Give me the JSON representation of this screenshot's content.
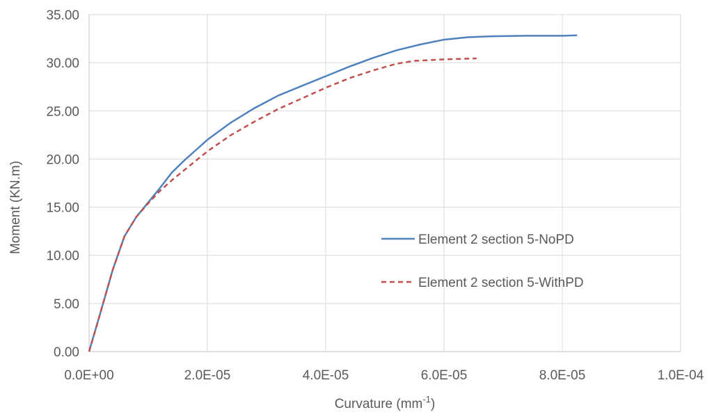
{
  "chart_data": {
    "type": "line",
    "xlabel": "Curvature (mm",
    "xlabel_sup": "-1",
    "xlabel_close": ")",
    "ylabel": "Moment (KN.m)",
    "xlim": [
      0,
      0.0001
    ],
    "ylim": [
      0,
      35
    ],
    "x_ticks": [
      0,
      2e-05,
      4e-05,
      6e-05,
      8e-05,
      0.0001
    ],
    "x_tick_labels": [
      "0.0E+00",
      "2.0E-05",
      "4.0E-05",
      "6.0E-05",
      "8.0E-05",
      "1.0E-04"
    ],
    "y_ticks": [
      0,
      5,
      10,
      15,
      20,
      25,
      30,
      35
    ],
    "y_tick_labels": [
      "0.00",
      "5.00",
      "10.00",
      "15.00",
      "20.00",
      "25.00",
      "30.00",
      "35.00"
    ],
    "grid": "vertical and horizontal major gridlines",
    "legend_position": "right-center",
    "series": [
      {
        "name": "Element 2 section 5-NoPD",
        "color": "#4f81bd",
        "style": "solid",
        "x": [
          0,
          2e-06,
          4e-06,
          6e-06,
          8e-06,
          1e-05,
          1.2e-05,
          1.4e-05,
          1.6e-05,
          1.8e-05,
          2e-05,
          2.4e-05,
          2.8e-05,
          3.2e-05,
          3.6e-05,
          4e-05,
          4.4e-05,
          4.8e-05,
          5.2e-05,
          5.6e-05,
          6e-05,
          6.4e-05,
          6.8e-05,
          7.4e-05,
          8e-05,
          8.25e-05
        ],
        "y": [
          0,
          4.2,
          8.5,
          12.0,
          14.0,
          15.5,
          17.0,
          18.6,
          19.8,
          20.9,
          22.0,
          23.8,
          25.3,
          26.6,
          27.6,
          28.6,
          29.6,
          30.5,
          31.3,
          31.9,
          32.4,
          32.65,
          32.75,
          32.8,
          32.8,
          32.85
        ]
      },
      {
        "name": "Element 2 section 5-WithPD",
        "color": "#c0504d",
        "style": "dashed",
        "x": [
          0,
          2e-06,
          4e-06,
          6e-06,
          8e-06,
          1e-05,
          1.2e-05,
          1.4e-05,
          1.6e-05,
          1.8e-05,
          2e-05,
          2.4e-05,
          2.8e-05,
          3.2e-05,
          3.6e-05,
          4e-05,
          4.4e-05,
          4.8e-05,
          5.2e-05,
          5.5e-05,
          6e-05,
          6.55e-05
        ],
        "y": [
          0,
          4.2,
          8.5,
          12.0,
          14.0,
          15.4,
          16.7,
          17.8,
          18.8,
          19.8,
          20.8,
          22.5,
          23.9,
          25.2,
          26.3,
          27.4,
          28.4,
          29.2,
          29.9,
          30.2,
          30.35,
          30.45
        ]
      }
    ]
  }
}
